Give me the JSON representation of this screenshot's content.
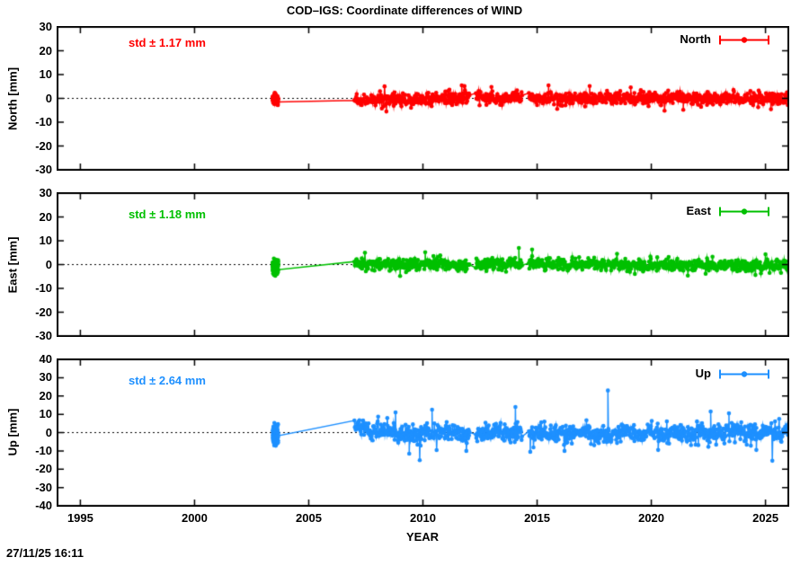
{
  "chart_data": {
    "type": "scatter",
    "title": "COD–IGS: Coordinate differences of WIND",
    "xlabel": "YEAR",
    "timestamp": "27/11/25 16:11",
    "x_range": [
      1994,
      2026
    ],
    "x_ticks": [
      1995,
      2000,
      2005,
      2010,
      2015,
      2020,
      2025
    ],
    "grid": "zero-line-dotted-only",
    "legend_position": "top-right-inside",
    "background_color": "#ffffff",
    "axis_color": "#000000",
    "panels": [
      {
        "name": "North",
        "ylabel": "North [mm]",
        "std_label": "std ± 1.17 mm",
        "std_mm": 1.17,
        "color": "#ff0000",
        "y_range": [
          -30,
          30
        ],
        "y_ticks": [
          30,
          20,
          10,
          0,
          -10,
          -20,
          -30
        ],
        "seed": 11,
        "clusters": [
          {
            "x0": 2003.42,
            "x1": 2003.66,
            "n": 90,
            "mean": -0.5,
            "sigma": 1.1,
            "clip": [
              -3.5,
              2.5
            ]
          }
        ],
        "band": {
          "x0": 2007.0,
          "x1": 2026.0,
          "step": 0.02,
          "sigma": 1.3,
          "mean_points": [
            [
              2007,
              -1.1
            ],
            [
              2008.5,
              -0.7
            ],
            [
              2010,
              -0.3
            ],
            [
              2011.5,
              0.4
            ],
            [
              2012.5,
              0.5
            ],
            [
              2013.5,
              0.1
            ],
            [
              2015,
              0.4
            ],
            [
              2017,
              0.1
            ],
            [
              2019,
              0.2
            ],
            [
              2021,
              0.0
            ],
            [
              2023,
              0.1
            ],
            [
              2026,
              -0.1
            ]
          ]
        },
        "gaps": [
          [
            2012.05,
            2012.3
          ],
          [
            2014.35,
            2014.62
          ]
        ],
        "spikes": [
          [
            2008.4,
            -5.5
          ],
          [
            2011.7,
            5.5
          ],
          [
            2013.0,
            4.8
          ],
          [
            2015.5,
            5.5
          ],
          [
            2017.3,
            5.2
          ],
          [
            2019.1,
            4.6
          ],
          [
            2021.4,
            -4.8
          ]
        ]
      },
      {
        "name": "East",
        "ylabel": "East [mm]",
        "std_label": "std ± 1.18 mm",
        "std_mm": 1.18,
        "color": "#00c000",
        "y_range": [
          -30,
          30
        ],
        "y_ticks": [
          30,
          20,
          10,
          0,
          -10,
          -20,
          -30
        ],
        "seed": 22,
        "clusters": [
          {
            "x0": 2003.42,
            "x1": 2003.66,
            "n": 90,
            "mean": -0.8,
            "sigma": 1.6,
            "clip": [
              -5,
              3
            ]
          }
        ],
        "band": {
          "x0": 2007.0,
          "x1": 2026.0,
          "step": 0.02,
          "sigma": 1.25,
          "mean_points": [
            [
              2007,
              0.2
            ],
            [
              2009,
              0.3
            ],
            [
              2011,
              0.2
            ],
            [
              2013,
              0.1
            ],
            [
              2014,
              0.4
            ],
            [
              2015,
              0.3
            ],
            [
              2017,
              0.0
            ],
            [
              2019,
              -0.1
            ],
            [
              2021,
              -0.3
            ],
            [
              2023,
              -0.4
            ],
            [
              2026,
              -0.5
            ]
          ]
        },
        "gaps": [
          [
            2012.05,
            2012.3
          ],
          [
            2014.35,
            2014.62
          ]
        ],
        "spikes": [
          [
            2009.0,
            -4.8
          ],
          [
            2010.1,
            5.2
          ],
          [
            2014.2,
            7.0
          ],
          [
            2014.78,
            6.3
          ],
          [
            2018.5,
            4.5
          ],
          [
            2021.6,
            -4.6
          ]
        ]
      },
      {
        "name": "Up",
        "ylabel": "Up [mm]",
        "std_label": "std ± 2.64 mm",
        "std_mm": 2.64,
        "color": "#1e90ff",
        "y_range": [
          -40,
          40
        ],
        "y_ticks": [
          40,
          30,
          20,
          10,
          0,
          -10,
          -20,
          -30,
          -40
        ],
        "seed": 33,
        "clusters": [
          {
            "x0": 2003.42,
            "x1": 2003.66,
            "n": 90,
            "mean": -1.0,
            "sigma": 3.0,
            "clip": [
              -8.5,
              7
            ]
          }
        ],
        "band": {
          "x0": 2007.0,
          "x1": 2026.0,
          "step": 0.02,
          "sigma": 2.7,
          "mean_points": [
            [
              2007,
              5
            ],
            [
              2007.4,
              1.5
            ],
            [
              2008,
              1
            ],
            [
              2009.5,
              -1.5
            ],
            [
              2010.5,
              0
            ],
            [
              2012,
              -0.8
            ],
            [
              2013.5,
              0.3
            ],
            [
              2015,
              -0.5
            ],
            [
              2017,
              -0.2
            ],
            [
              2019,
              -0.6
            ],
            [
              2021,
              -0.2
            ],
            [
              2023,
              -0.6
            ],
            [
              2026,
              -0.4
            ]
          ]
        },
        "gaps": [
          [
            2012.05,
            2012.3
          ],
          [
            2014.35,
            2014.62
          ]
        ],
        "spikes": [
          [
            2008.8,
            11
          ],
          [
            2009.4,
            -11.5
          ],
          [
            2010.4,
            12.5
          ],
          [
            2011.9,
            -10
          ],
          [
            2014.05,
            14
          ],
          [
            2014.7,
            -10.5
          ],
          [
            2016.2,
            -10
          ],
          [
            2018.1,
            23
          ],
          [
            2020.3,
            -9.5
          ],
          [
            2022.6,
            11.5
          ],
          [
            2023.4,
            10.5
          ],
          [
            2024.6,
            -9.5
          ]
        ]
      }
    ]
  }
}
